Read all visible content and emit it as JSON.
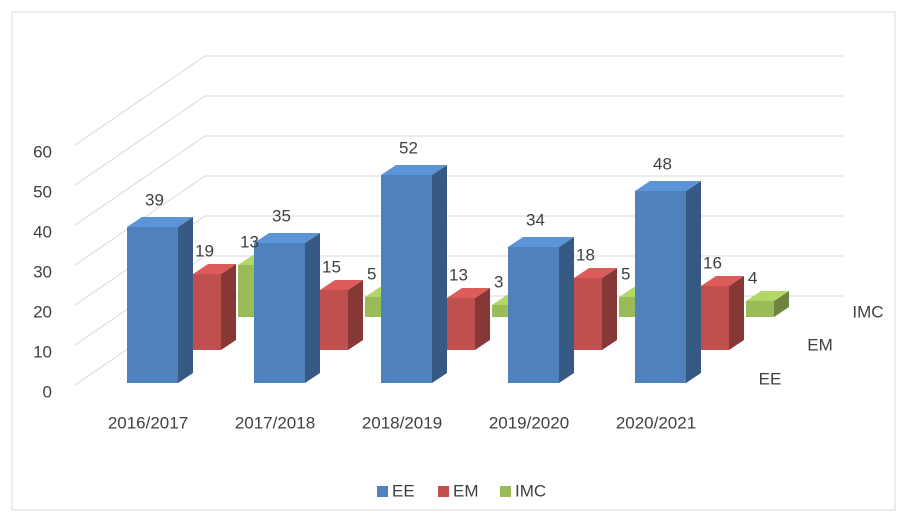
{
  "chart_data": {
    "type": "bar3d",
    "categories": [
      "2016/2017",
      "2017/2018",
      "2018/2019",
      "2019/2020",
      "2020/2021"
    ],
    "series": [
      {
        "name": "EE",
        "color": "#4f81bd",
        "values": [
          39,
          35,
          52,
          34,
          48
        ]
      },
      {
        "name": "EM",
        "color": "#c0504d",
        "values": [
          19,
          15,
          13,
          18,
          16
        ]
      },
      {
        "name": "IMC",
        "color": "#9bbb59",
        "values": [
          13,
          5,
          3,
          5,
          4
        ]
      }
    ],
    "ylim": [
      0,
      60
    ],
    "yticks": [
      0,
      10,
      20,
      30,
      40,
      50,
      60
    ],
    "grid": true,
    "legend": "bottom"
  }
}
